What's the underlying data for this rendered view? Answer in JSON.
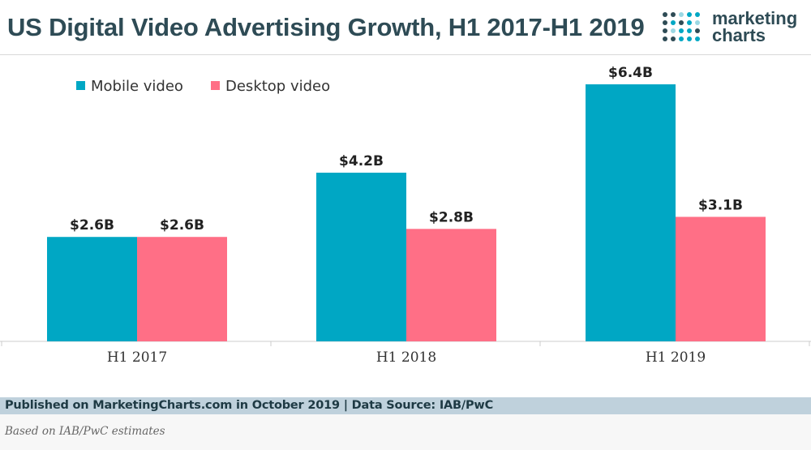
{
  "header": {
    "title": "US Digital Video Advertising Growth, H1 2017-H1 2019",
    "brand_line1": "marketing",
    "brand_line2": "charts",
    "brand_icon": "dot-grid-logo-icon"
  },
  "chart_data": {
    "type": "bar",
    "title": "US Digital Video Advertising Growth, H1 2017-H1 2019",
    "xlabel": "",
    "ylabel": "",
    "categories": [
      "H1 2017",
      "H1 2018",
      "H1 2019"
    ],
    "series": [
      {
        "name": "Mobile video",
        "values": [
          2.6,
          4.2,
          6.4
        ],
        "labels": [
          "$2.6B",
          "$4.2B",
          "$6.4B"
        ],
        "color": "#00a7c4"
      },
      {
        "name": "Desktop video",
        "values": [
          2.6,
          2.8,
          3.1
        ],
        "labels": [
          "$2.6B",
          "$2.8B",
          "$3.1B"
        ],
        "color": "#ff6f86"
      }
    ],
    "ylim": [
      0,
      6.4
    ],
    "grid": false,
    "legend": "top-left"
  },
  "footer": {
    "published": "Published on MarketingCharts.com in October 2019 | Data Source: IAB/PwC",
    "note": "Based on IAB/PwC estimates"
  },
  "colors": {
    "title": "#2e4b55",
    "footer_bar": "#bfd1dc",
    "axis": "#cccccc"
  }
}
